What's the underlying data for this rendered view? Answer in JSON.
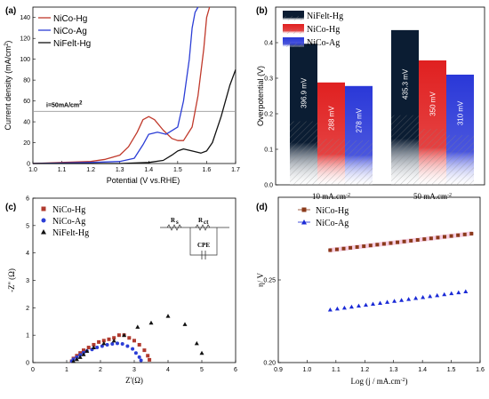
{
  "chart_data": [
    {
      "panel": "(a)",
      "type": "line",
      "xlabel": "Potential (V vs.RHE)",
      "ylabel": "Current density (mA/cm",
      "ylabel_sup": "2",
      "ylabel_close": ")",
      "xlim": [
        1.0,
        1.7
      ],
      "ylim": [
        0,
        150
      ],
      "xticks": [
        1.0,
        1.1,
        1.2,
        1.3,
        1.4,
        1.5,
        1.6,
        1.7
      ],
      "yticks": [
        0,
        20,
        40,
        60,
        80,
        100,
        120,
        140
      ],
      "reference_line": {
        "y": 50,
        "label": "i=50mA/cm",
        "label_sup": "2"
      },
      "legend": "top-left",
      "series": [
        {
          "name": "NiCo-Hg",
          "color": "#c0392b",
          "x": [
            1.0,
            1.1,
            1.2,
            1.25,
            1.3,
            1.33,
            1.36,
            1.38,
            1.4,
            1.42,
            1.45,
            1.48,
            1.5,
            1.52,
            1.55,
            1.57,
            1.59,
            1.6,
            1.61
          ],
          "y": [
            0,
            1,
            2,
            4,
            8,
            16,
            30,
            42,
            45,
            42,
            32,
            24,
            22,
            22,
            35,
            65,
            110,
            140,
            150
          ]
        },
        {
          "name": "NiCo-Ag",
          "color": "#2c3ed6",
          "x": [
            1.0,
            1.2,
            1.3,
            1.35,
            1.38,
            1.4,
            1.43,
            1.46,
            1.5,
            1.52,
            1.54,
            1.55,
            1.56,
            1.57
          ],
          "y": [
            0,
            1,
            2,
            5,
            18,
            28,
            30,
            28,
            35,
            60,
            100,
            130,
            145,
            150
          ]
        },
        {
          "name": "NiFelt-Hg",
          "color": "#111111",
          "x": [
            1.0,
            1.3,
            1.4,
            1.45,
            1.48,
            1.5,
            1.52,
            1.55,
            1.58,
            1.6,
            1.62,
            1.65,
            1.68,
            1.7
          ],
          "y": [
            0,
            0,
            1,
            3,
            8,
            12,
            14,
            12,
            10,
            12,
            20,
            45,
            75,
            90
          ]
        }
      ]
    },
    {
      "panel": "(b)",
      "type": "bar",
      "ylabel": "Overpotential (V)",
      "ylim": [
        0,
        0.5
      ],
      "yticks": [
        0.0,
        0.1,
        0.2,
        0.3,
        0.4
      ],
      "categories": [
        "10 mA.cm",
        "50 mA.cm"
      ],
      "category_sup": "-2",
      "legend": "top-left",
      "series": [
        {
          "name": "NiFelt-Hg",
          "color": "#0b1d33",
          "values": [
            0.3969,
            0.4353
          ],
          "labels": [
            "396.9 mV",
            "435.3 mV"
          ]
        },
        {
          "name": "NiCo-Hg",
          "color": "#e02020",
          "values": [
            0.288,
            0.35
          ],
          "labels": [
            "288 mV",
            "350 mV"
          ]
        },
        {
          "name": "NiCo-Ag",
          "color": "#2a38d8",
          "values": [
            0.278,
            0.31
          ],
          "labels": [
            "278 mV",
            "310 mV"
          ]
        }
      ]
    },
    {
      "panel": "(c)",
      "type": "scatter",
      "xlabel": "Z'(Ω)",
      "ylabel": "-Z'' (Ω)",
      "xlim": [
        0,
        6
      ],
      "ylim": [
        0,
        6
      ],
      "xticks": [
        0,
        1,
        2,
        3,
        4,
        5,
        6
      ],
      "yticks": [
        0,
        1,
        2,
        3,
        4,
        5,
        6
      ],
      "legend": "top-left",
      "circuit": {
        "rs": "R",
        "rs_sub": "s",
        "rct": "R",
        "rct_sub": "ct",
        "cpe": "CPE"
      },
      "series": [
        {
          "name": "NiCo-Hg",
          "color": "#b03a2e",
          "marker": "square",
          "x": [
            1.15,
            1.2,
            1.3,
            1.4,
            1.5,
            1.65,
            1.8,
            1.95,
            2.1,
            2.25,
            2.4,
            2.55,
            2.7,
            2.85,
            3.0,
            3.15,
            3.3,
            3.4,
            3.45
          ],
          "y": [
            0.05,
            0.15,
            0.25,
            0.35,
            0.45,
            0.55,
            0.65,
            0.75,
            0.8,
            0.85,
            0.9,
            1.0,
            1.0,
            0.9,
            0.8,
            0.65,
            0.45,
            0.25,
            0.1
          ]
        },
        {
          "name": "NiCo-Ag",
          "color": "#2c3ed6",
          "marker": "circle",
          "x": [
            1.15,
            1.2,
            1.3,
            1.4,
            1.5,
            1.6,
            1.75,
            1.9,
            2.05,
            2.2,
            2.35,
            2.5,
            2.65,
            2.8,
            2.95,
            3.05,
            3.15,
            3.2
          ],
          "y": [
            0.05,
            0.12,
            0.2,
            0.28,
            0.36,
            0.42,
            0.48,
            0.55,
            0.6,
            0.65,
            0.68,
            0.7,
            0.68,
            0.6,
            0.5,
            0.35,
            0.2,
            0.08
          ]
        },
        {
          "name": "NiFelt-Hg",
          "color": "#111111",
          "marker": "triangle",
          "x": [
            1.2,
            1.3,
            1.4,
            1.5,
            1.6,
            1.8,
            2.1,
            2.4,
            2.7,
            3.1,
            3.5,
            4.0,
            4.5,
            4.85,
            5.0
          ],
          "y": [
            0.05,
            0.12,
            0.2,
            0.3,
            0.42,
            0.55,
            0.7,
            0.8,
            1.0,
            1.3,
            1.45,
            1.7,
            1.4,
            0.7,
            0.35
          ]
        }
      ]
    },
    {
      "panel": "(d)",
      "type": "scatter",
      "xlabel": "Log (j / mA.cm",
      "xlabel_sup": "-2",
      "xlabel_close": ")",
      "ylabel": "η/ V",
      "xlim": [
        0.9,
        1.6
      ],
      "ylim": [
        0.2,
        0.3
      ],
      "xticks": [
        0.9,
        1.0,
        1.1,
        1.2,
        1.3,
        1.4,
        1.5,
        1.6
      ],
      "yticks": [
        0.2,
        0.25
      ],
      "legend": "top-left",
      "series": [
        {
          "name": "NiCo-Hg",
          "color": "#8b3a1a",
          "marker": "square",
          "x_start": 1.08,
          "x_end": 1.57,
          "y_start": 0.268,
          "y_end": 0.278,
          "n": 22
        },
        {
          "name": "NiCo-Ag",
          "color": "#1a2ad6",
          "marker": "triangle",
          "x_start": 1.08,
          "x_end": 1.55,
          "y_start": 0.232,
          "y_end": 0.243,
          "n": 20
        }
      ]
    }
  ]
}
